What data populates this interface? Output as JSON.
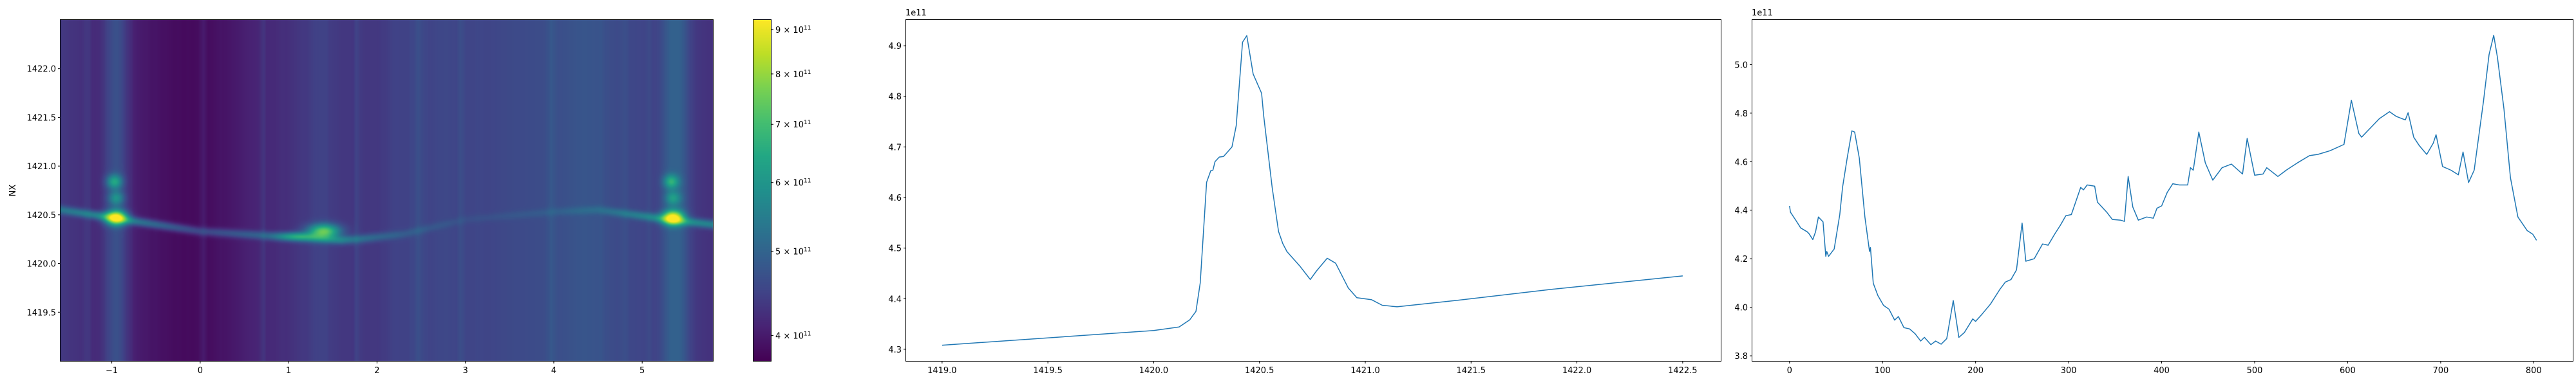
{
  "chart_data": [
    {
      "type": "heatmap",
      "ylabel": "NX",
      "xlim": [
        -1.58,
        5.8
      ],
      "ylim": [
        1419.0,
        1422.5
      ],
      "x_ticks": [
        -1,
        0,
        1,
        2,
        3,
        4,
        5
      ],
      "x_tick_labels": [
        "−1",
        "0",
        "1",
        "2",
        "3",
        "4",
        "5"
      ],
      "y_ticks": [
        1419.5,
        1420.0,
        1420.5,
        1421.0,
        1421.5,
        1422.0
      ],
      "y_tick_labels": [
        "1419.5",
        "1420.0",
        "1420.5",
        "1421.0",
        "1421.5",
        "1422.0"
      ],
      "colormap": "viridis",
      "colorbar": {
        "scale": "log",
        "range": [
          374000000000.0,
          923000000000.0
        ],
        "ticks": [
          {
            "value": 400000000000.0,
            "mantissa": "4",
            "exponent": "11"
          },
          {
            "value": 500000000000.0,
            "mantissa": "5",
            "exponent": "11"
          },
          {
            "value": 600000000000.0,
            "mantissa": "6",
            "exponent": "11"
          },
          {
            "value": 700000000000.0,
            "mantissa": "7",
            "exponent": "11"
          },
          {
            "value": 800000000000.0,
            "mantissa": "8",
            "exponent": "11"
          },
          {
            "value": 900000000000.0,
            "mantissa": "9",
            "exponent": "11"
          }
        ]
      }
    },
    {
      "type": "line",
      "color": "#1f77b4",
      "offset_text": "1e11",
      "xlim": [
        1418.83,
        1422.68
      ],
      "ylim": [
        4.277,
        4.951
      ],
      "x_ticks": [
        1419.0,
        1419.5,
        1420.0,
        1420.5,
        1421.0,
        1421.5,
        1422.0,
        1422.5
      ],
      "x_tick_labels": [
        "1419.0",
        "1419.5",
        "1420.0",
        "1420.5",
        "1421.0",
        "1421.5",
        "1422.0",
        "1422.5"
      ],
      "y_ticks": [
        4.3,
        4.4,
        4.5,
        4.6,
        4.7,
        4.8,
        4.9
      ],
      "y_tick_labels": [
        "4.3",
        "4.4",
        "4.5",
        "4.6",
        "4.7",
        "4.8",
        "4.9"
      ],
      "x": [
        1419.0,
        1420.0,
        1420.12,
        1420.17,
        1420.2,
        1420.22,
        1420.25,
        1420.27,
        1420.28,
        1420.29,
        1420.31,
        1420.33,
        1420.37,
        1420.39,
        1420.42,
        1420.44,
        1420.47,
        1420.51,
        1420.52,
        1420.56,
        1420.59,
        1420.61,
        1420.63,
        1420.69,
        1420.74,
        1420.77,
        1420.82,
        1420.86,
        1420.92,
        1420.96,
        1421.03,
        1421.08,
        1421.15,
        1421.44,
        1421.87,
        1422.5
      ],
      "y": [
        4.308,
        4.337,
        4.344,
        4.358,
        4.375,
        4.431,
        4.63,
        4.653,
        4.654,
        4.671,
        4.68,
        4.681,
        4.7,
        4.742,
        4.907,
        4.92,
        4.844,
        4.806,
        4.761,
        4.62,
        4.533,
        4.509,
        4.493,
        4.465,
        4.438,
        4.455,
        4.48,
        4.47,
        4.421,
        4.402,
        4.398,
        4.387,
        4.384,
        4.397,
        4.418,
        4.445
      ]
    },
    {
      "type": "line",
      "color": "#1f77b4",
      "offset_text": "1e11",
      "xlim": [
        -40,
        842
      ],
      "ylim": [
        3.779,
        5.184
      ],
      "x_ticks": [
        0,
        100,
        200,
        300,
        400,
        500,
        600,
        700,
        800
      ],
      "x_tick_labels": [
        "0",
        "100",
        "200",
        "300",
        "400",
        "500",
        "600",
        "700",
        "800"
      ],
      "y_ticks": [
        3.8,
        4.0,
        4.2,
        4.4,
        4.6,
        4.8,
        5.0
      ],
      "y_tick_labels": [
        "3.8",
        "4.0",
        "4.2",
        "4.4",
        "4.6",
        "4.8",
        "5.0"
      ],
      "x": [
        0,
        1,
        7,
        12,
        19,
        21,
        25,
        28,
        31,
        36,
        39,
        40,
        42,
        48,
        54,
        57,
        62,
        67,
        70,
        75,
        81,
        86,
        87,
        90,
        95,
        101,
        107,
        113,
        117,
        123,
        129,
        135,
        141,
        145,
        152,
        157,
        163,
        169,
        176,
        182,
        188,
        197,
        200,
        207,
        216,
        226,
        232,
        238,
        244,
        250,
        254,
        263,
        272,
        278,
        285,
        291,
        297,
        303,
        313,
        316,
        320,
        328,
        331,
        341,
        347,
        356,
        360,
        364,
        369,
        375,
        384,
        391,
        395,
        400,
        406,
        412,
        419,
        428,
        431,
        434,
        440,
        447,
        455,
        465,
        475,
        487,
        492,
        500,
        509,
        513,
        525,
        534,
        546,
        559,
        568,
        581,
        596,
        604,
        612,
        615,
        624,
        634,
        645,
        652,
        662,
        665,
        671,
        677,
        685,
        692,
        695,
        702,
        711,
        719,
        724,
        730,
        736,
        746,
        752,
        757,
        761,
        768,
        775,
        783,
        793,
        799,
        803
      ],
      "y": [
        4.418,
        4.392,
        4.357,
        4.327,
        4.311,
        4.303,
        4.279,
        4.311,
        4.372,
        4.352,
        4.21,
        4.23,
        4.21,
        4.24,
        4.382,
        4.494,
        4.615,
        4.727,
        4.722,
        4.615,
        4.372,
        4.23,
        4.246,
        4.099,
        4.048,
        4.008,
        3.992,
        3.947,
        3.962,
        3.916,
        3.911,
        3.891,
        3.861,
        3.876,
        3.846,
        3.861,
        3.848,
        3.871,
        4.028,
        3.876,
        3.896,
        3.952,
        3.942,
        3.972,
        4.013,
        4.073,
        4.104,
        4.114,
        4.154,
        4.347,
        4.19,
        4.2,
        4.261,
        4.256,
        4.301,
        4.337,
        4.377,
        4.382,
        4.494,
        4.484,
        4.504,
        4.499,
        4.433,
        4.392,
        4.362,
        4.359,
        4.354,
        4.539,
        4.413,
        4.359,
        4.372,
        4.367,
        4.408,
        4.418,
        4.473,
        4.509,
        4.504,
        4.504,
        4.575,
        4.565,
        4.722,
        4.595,
        4.524,
        4.575,
        4.59,
        4.549,
        4.696,
        4.544,
        4.549,
        4.575,
        4.539,
        4.565,
        4.595,
        4.625,
        4.63,
        4.645,
        4.671,
        4.853,
        4.716,
        4.701,
        4.737,
        4.777,
        4.806,
        4.787,
        4.772,
        4.802,
        4.701,
        4.666,
        4.63,
        4.676,
        4.711,
        4.58,
        4.565,
        4.546,
        4.64,
        4.514,
        4.565,
        4.848,
        5.041,
        5.121,
        5.03,
        4.818,
        4.534,
        4.372,
        4.316,
        4.301,
        4.276
      ]
    }
  ]
}
